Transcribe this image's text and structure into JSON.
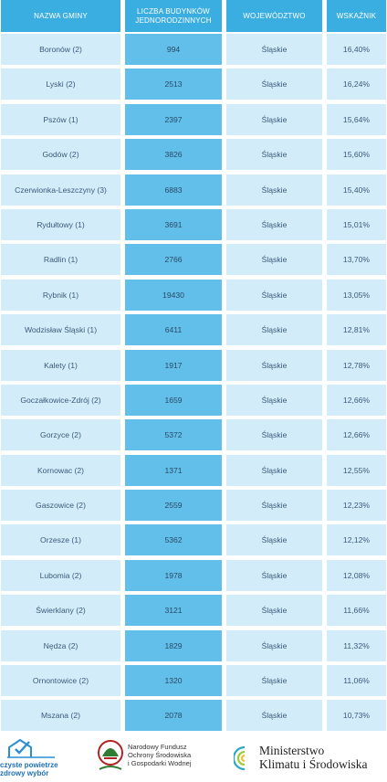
{
  "headers": {
    "gmina": "NAZWA GMINY",
    "budynki_line1": "LICZBA BUDYNKÓW",
    "budynki_line2": "JEDNORODZINNYCH",
    "wojewodztwo": "WOJEWÓDZTWO",
    "wskaznik": "WSKAŹNIK"
  },
  "rows": [
    {
      "gmina": "Boronów (2)",
      "budynki": "994",
      "wojewodztwo": "Śląskie",
      "wskaznik": "16,40%"
    },
    {
      "gmina": "Lyski (2)",
      "budynki": "2513",
      "wojewodztwo": "Śląskie",
      "wskaznik": "16,24%"
    },
    {
      "gmina": "Pszów (1)",
      "budynki": "2397",
      "wojewodztwo": "Śląskie",
      "wskaznik": "15,64%"
    },
    {
      "gmina": "Godów (2)",
      "budynki": "3826",
      "wojewodztwo": "Śląskie",
      "wskaznik": "15,60%"
    },
    {
      "gmina": "Czerwionka-Leszczyny (3)",
      "budynki": "6883",
      "wojewodztwo": "Śląskie",
      "wskaznik": "15,40%"
    },
    {
      "gmina": "Rydułtowy (1)",
      "budynki": "3691",
      "wojewodztwo": "Śląskie",
      "wskaznik": "15,01%"
    },
    {
      "gmina": "Radlin (1)",
      "budynki": "2766",
      "wojewodztwo": "Śląskie",
      "wskaznik": "13,70%"
    },
    {
      "gmina": "Rybnik (1)",
      "budynki": "19430",
      "wojewodztwo": "Śląskie",
      "wskaznik": "13,05%"
    },
    {
      "gmina": "Wodzisław Śląski (1)",
      "budynki": "6411",
      "wojewodztwo": "Śląskie",
      "wskaznik": "12,81%"
    },
    {
      "gmina": "Kalety (1)",
      "budynki": "1917",
      "wojewodztwo": "Śląskie",
      "wskaznik": "12,78%"
    },
    {
      "gmina": "Goczałkowice-Zdrój (2)",
      "budynki": "1659",
      "wojewodztwo": "Śląskie",
      "wskaznik": "12,66%"
    },
    {
      "gmina": "Gorzyce (2)",
      "budynki": "5372",
      "wojewodztwo": "Śląskie",
      "wskaznik": "12,66%"
    },
    {
      "gmina": "Kornowac (2)",
      "budynki": "1371",
      "wojewodztwo": "Śląskie",
      "wskaznik": "12,55%"
    },
    {
      "gmina": "Gaszowice (2)",
      "budynki": "2559",
      "wojewodztwo": "Śląskie",
      "wskaznik": "12,23%"
    },
    {
      "gmina": "Orzesze (1)",
      "budynki": "5362",
      "wojewodztwo": "Śląskie",
      "wskaznik": "12,12%"
    },
    {
      "gmina": "Lubomia (2)",
      "budynki": "1978",
      "wojewodztwo": "Śląskie",
      "wskaznik": "12,08%"
    },
    {
      "gmina": "Świerklany (2)",
      "budynki": "3121",
      "wojewodztwo": "Śląskie",
      "wskaznik": "11,66%"
    },
    {
      "gmina": "Nędza (2)",
      "budynki": "1829",
      "wojewodztwo": "Śląskie",
      "wskaznik": "11,32%"
    },
    {
      "gmina": "Ornontowice (2)",
      "budynki": "1320",
      "wojewodztwo": "Śląskie",
      "wskaznik": "11,06%"
    },
    {
      "gmina": "Mszana (2)",
      "budynki": "2078",
      "wojewodztwo": "Śląskie",
      "wskaznik": "10,73%"
    }
  ],
  "footer": {
    "logo1": {
      "line1": "czyste powietrze",
      "line2": "zdrowy wybór",
      "icon": "house-check-icon",
      "color": "#1e6fb5"
    },
    "logo2": {
      "line1": "Narodowy Fundusz",
      "line2": "Ochrony Środowiska",
      "line3": "i Gospodarki Wodnej",
      "icon": "nfosigw-emblem-icon"
    },
    "logo3": {
      "line1": "Ministerstwo",
      "line2": "Klimatu i Środowiska",
      "icon": "ministry-wave-icon"
    }
  },
  "colors": {
    "header_bg": "#3aaee0",
    "light_cell": "#d3ecfa",
    "dark_cell": "#62bfe9"
  }
}
